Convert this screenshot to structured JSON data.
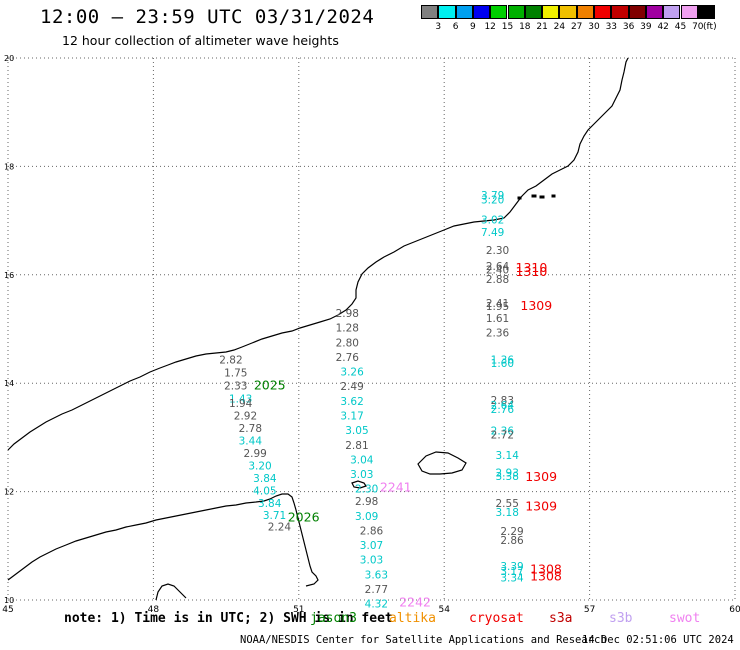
{
  "header": {
    "title": "12:00 — 23:59 UTC 03/31/2024",
    "subtitle": "12 hour collection of altimeter wave heights"
  },
  "colorbar": {
    "unit": "(ft)",
    "colors": [
      "#808080",
      "#00f0f0",
      "#00a0f0",
      "#0000f0",
      "#00d000",
      "#00b000",
      "#008000",
      "#f0f000",
      "#f0c000",
      "#f08000",
      "#f00000",
      "#c00000",
      "#800000",
      "#a000a0",
      "#c0a0f0",
      "#f0a0f0",
      "#000000"
    ],
    "labels": [
      "3",
      "6",
      "9",
      "12",
      "15",
      "18",
      "21",
      "24",
      "27",
      "30",
      "33",
      "36",
      "39",
      "42",
      "45",
      "70"
    ]
  },
  "chart_data": {
    "type": "scatter",
    "xlim": [
      45,
      60
    ],
    "ylim": [
      10,
      20
    ],
    "x_ticks": [
      "45",
      "48",
      "51",
      "54",
      "57",
      "60"
    ],
    "y_ticks": [
      "10",
      "12",
      "14",
      "16",
      "18",
      "20"
    ],
    "grid": true,
    "measurements": [
      {
        "x": 52.0,
        "y": 15.22,
        "v": "2.98",
        "c": "#555555"
      },
      {
        "x": 52.0,
        "y": 14.95,
        "v": "1.28",
        "c": "#555555"
      },
      {
        "x": 52.0,
        "y": 14.68,
        "v": "2.80",
        "c": "#555555"
      },
      {
        "x": 52.0,
        "y": 14.41,
        "v": "2.76",
        "c": "#555555"
      },
      {
        "x": 52.1,
        "y": 14.14,
        "v": "3.26",
        "c": "#00c8c8"
      },
      {
        "x": 52.1,
        "y": 13.87,
        "v": "2.49",
        "c": "#555555"
      },
      {
        "x": 52.1,
        "y": 13.6,
        "v": "3.62",
        "c": "#00c8c8"
      },
      {
        "x": 52.1,
        "y": 13.33,
        "v": "3.17",
        "c": "#00c8c8"
      },
      {
        "x": 52.2,
        "y": 13.06,
        "v": "3.05",
        "c": "#00c8c8"
      },
      {
        "x": 52.2,
        "y": 12.79,
        "v": "2.81",
        "c": "#555555"
      },
      {
        "x": 52.3,
        "y": 12.52,
        "v": "3.04",
        "c": "#00c8c8"
      },
      {
        "x": 52.3,
        "y": 12.25,
        "v": "3.03",
        "c": "#00c8c8"
      },
      {
        "x": 52.4,
        "y": 11.98,
        "v": "2.30",
        "c": "#00c8c8"
      },
      {
        "x": 52.4,
        "y": 11.75,
        "v": "2.98",
        "c": "#555555"
      },
      {
        "x": 52.4,
        "y": 11.48,
        "v": "3.09",
        "c": "#00c8c8"
      },
      {
        "x": 52.5,
        "y": 11.21,
        "v": "2.86",
        "c": "#555555"
      },
      {
        "x": 52.5,
        "y": 10.94,
        "v": "3.07",
        "c": "#00c8c8"
      },
      {
        "x": 52.5,
        "y": 10.67,
        "v": "3.03",
        "c": "#00c8c8"
      },
      {
        "x": 52.6,
        "y": 10.4,
        "v": "3.63",
        "c": "#00c8c8"
      },
      {
        "x": 52.6,
        "y": 10.13,
        "v": "2.77",
        "c": "#555555"
      },
      {
        "x": 52.6,
        "y": 9.86,
        "v": "4.32",
        "c": "#00c8c8"
      },
      {
        "x": 49.6,
        "y": 14.36,
        "v": "2.82",
        "c": "#555555"
      },
      {
        "x": 49.7,
        "y": 14.12,
        "v": "1.75",
        "c": "#555555"
      },
      {
        "x": 49.7,
        "y": 13.88,
        "v": "2.33",
        "c": "#555555"
      },
      {
        "x": 49.8,
        "y": 13.64,
        "v": "1.43",
        "c": "#00c8c8"
      },
      {
        "x": 49.8,
        "y": 13.56,
        "v": "1.94",
        "c": "#555555"
      },
      {
        "x": 49.9,
        "y": 13.33,
        "v": "2.92",
        "c": "#555555"
      },
      {
        "x": 50.0,
        "y": 13.1,
        "v": "2.78",
        "c": "#555555"
      },
      {
        "x": 50.0,
        "y": 12.87,
        "v": "3.44",
        "c": "#00c8c8"
      },
      {
        "x": 50.1,
        "y": 12.64,
        "v": "2.99",
        "c": "#555555"
      },
      {
        "x": 50.2,
        "y": 12.41,
        "v": "3.20",
        "c": "#00c8c8"
      },
      {
        "x": 50.3,
        "y": 12.18,
        "v": "3.84",
        "c": "#00c8c8"
      },
      {
        "x": 50.3,
        "y": 11.95,
        "v": "4.05",
        "c": "#00c8c8"
      },
      {
        "x": 50.4,
        "y": 11.72,
        "v": "3.84",
        "c": "#00c8c8"
      },
      {
        "x": 50.5,
        "y": 11.49,
        "v": "3.71",
        "c": "#00c8c8"
      },
      {
        "x": 50.6,
        "y": 11.28,
        "v": "2.24",
        "c": "#555555"
      },
      {
        "x": 55.0,
        "y": 17.4,
        "v": "3.79",
        "c": "#00c8c8"
      },
      {
        "x": 55.0,
        "y": 17.32,
        "v": "3.20",
        "c": "#00c8c8"
      },
      {
        "x": 55.0,
        "y": 16.95,
        "v": "3.02",
        "c": "#00c8c8"
      },
      {
        "x": 55.0,
        "y": 16.72,
        "v": "7.49",
        "c": "#00c8c8"
      },
      {
        "x": 55.1,
        "y": 16.38,
        "v": "2.30",
        "c": "#555555"
      },
      {
        "x": 55.1,
        "y": 16.09,
        "v": "2.64",
        "c": "#555555"
      },
      {
        "x": 55.1,
        "y": 16.02,
        "v": "2.40",
        "c": "#555555"
      },
      {
        "x": 55.1,
        "y": 15.85,
        "v": "2.88",
        "c": "#555555"
      },
      {
        "x": 55.1,
        "y": 15.41,
        "v": "2.41",
        "c": "#555555"
      },
      {
        "x": 55.1,
        "y": 15.35,
        "v": "1.95",
        "c": "#555555"
      },
      {
        "x": 55.1,
        "y": 15.13,
        "v": "1.61",
        "c": "#555555"
      },
      {
        "x": 55.1,
        "y": 14.86,
        "v": "2.36",
        "c": "#555555"
      },
      {
        "x": 55.2,
        "y": 14.36,
        "v": "1.36",
        "c": "#00c8c8"
      },
      {
        "x": 55.2,
        "y": 14.3,
        "v": "1.60",
        "c": "#00c8c8"
      },
      {
        "x": 55.2,
        "y": 13.62,
        "v": "2.83",
        "c": "#555555"
      },
      {
        "x": 55.2,
        "y": 13.52,
        "v": "2.64",
        "c": "#00c8c8"
      },
      {
        "x": 55.2,
        "y": 13.45,
        "v": "2.76",
        "c": "#00c8c8"
      },
      {
        "x": 55.2,
        "y": 13.05,
        "v": "2.36",
        "c": "#00c8c8"
      },
      {
        "x": 55.2,
        "y": 12.98,
        "v": "2.72",
        "c": "#555555"
      },
      {
        "x": 55.3,
        "y": 12.6,
        "v": "3.14",
        "c": "#00c8c8"
      },
      {
        "x": 55.3,
        "y": 12.28,
        "v": "2.93",
        "c": "#00c8c8"
      },
      {
        "x": 55.3,
        "y": 12.21,
        "v": "3.38",
        "c": "#00c8c8"
      },
      {
        "x": 55.3,
        "y": 11.72,
        "v": "2.55",
        "c": "#555555"
      },
      {
        "x": 55.3,
        "y": 11.55,
        "v": "3.18",
        "c": "#00c8c8"
      },
      {
        "x": 55.4,
        "y": 11.2,
        "v": "2.29",
        "c": "#555555"
      },
      {
        "x": 55.4,
        "y": 11.03,
        "v": "2.86",
        "c": "#555555"
      },
      {
        "x": 55.4,
        "y": 10.55,
        "v": "3.39",
        "c": "#00c8c8"
      },
      {
        "x": 55.4,
        "y": 10.46,
        "v": "3.17",
        "c": "#00c8c8"
      },
      {
        "x": 55.4,
        "y": 10.34,
        "v": "3.34",
        "c": "#00c8c8"
      }
    ],
    "pass_labels": [
      {
        "x": 50.4,
        "y": 13.88,
        "v": "2025",
        "c": "#008000"
      },
      {
        "x": 51.1,
        "y": 11.45,
        "v": "2026",
        "c": "#008000"
      },
      {
        "x": 53.0,
        "y": 12.0,
        "v": "2241",
        "c": "#f080f0"
      },
      {
        "x": 53.4,
        "y": 9.88,
        "v": "2242",
        "c": "#f080f0"
      },
      {
        "x": 55.8,
        "y": 16.05,
        "v": "1310",
        "c": "#f00000"
      },
      {
        "x": 55.8,
        "y": 15.98,
        "v": "1310",
        "c": "#f00000"
      },
      {
        "x": 55.9,
        "y": 15.35,
        "v": "1309",
        "c": "#f00000"
      },
      {
        "x": 56.0,
        "y": 12.2,
        "v": "1309",
        "c": "#f00000"
      },
      {
        "x": 56.0,
        "y": 11.65,
        "v": "1309",
        "c": "#f00000"
      },
      {
        "x": 56.1,
        "y": 10.49,
        "v": "1308",
        "c": "#f00000"
      },
      {
        "x": 56.1,
        "y": 10.36,
        "v": "1308",
        "c": "#f00000"
      }
    ]
  },
  "footer": {
    "note": "note: 1) Time is in UTC; 2) SWH is in feet",
    "satellites": [
      {
        "name": "jason3",
        "color": "#008000"
      },
      {
        "name": "altika",
        "color": "#f09000"
      },
      {
        "name": "cryosat",
        "color": "#f00000"
      },
      {
        "name": "s3a",
        "color": "#c00000"
      },
      {
        "name": "s3b",
        "color": "#c0a0f0"
      },
      {
        "name": "swot",
        "color": "#f080f0"
      }
    ],
    "credit": "NOAA/NESDIS Center for Satellite Applications and Research",
    "timestamp": "14 Dec 02:51:06 UTC 2024"
  }
}
